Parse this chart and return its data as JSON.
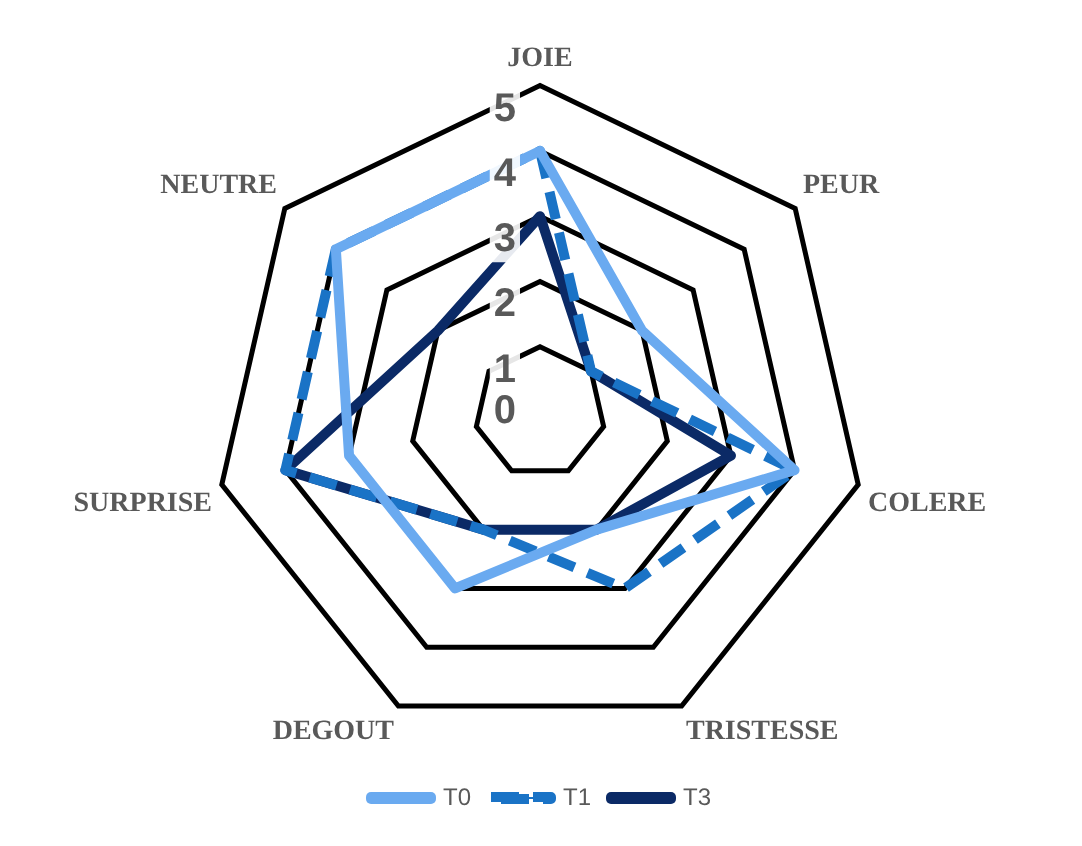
{
  "chart_data": {
    "type": "radar",
    "categories": [
      "JOIE",
      "PEUR",
      "COLERE",
      "TRISTESSE",
      "DEGOUT",
      "SURPRISE",
      "NEUTRE"
    ],
    "series": [
      {
        "name": "T0",
        "color": "#6aaaf0",
        "line_style": "solid",
        "values": [
          4,
          2,
          4,
          2,
          3,
          3,
          4
        ]
      },
      {
        "name": "T1",
        "color": "#1a73c6",
        "line_style": "dashed",
        "values": [
          4,
          1,
          4,
          3,
          2,
          4,
          4
        ]
      },
      {
        "name": "T3",
        "color": "#0b2a66",
        "line_style": "solid",
        "values": [
          3,
          1,
          3,
          2,
          2,
          4,
          2
        ]
      }
    ],
    "ylim": [
      0,
      5
    ],
    "yticks": [
      0,
      1,
      2,
      3,
      4,
      5
    ],
    "grid": true,
    "legend": "bottom",
    "marker": "none"
  }
}
